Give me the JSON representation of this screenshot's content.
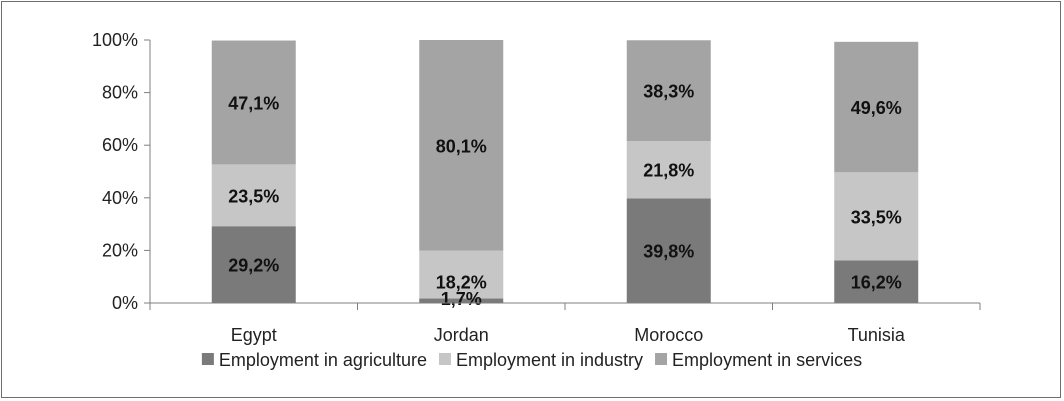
{
  "chart_data": {
    "type": "bar",
    "stacked": true,
    "categories": [
      "Egypt",
      "Jordan",
      "Morocco",
      "Tunisia"
    ],
    "series": [
      {
        "name": "Employment in agriculture",
        "values": [
          29.2,
          1.7,
          39.8,
          16.2
        ],
        "labels": [
          "29,2%",
          "1,7%",
          "39,8%",
          "16,2%"
        ],
        "color": "#7a7a7a"
      },
      {
        "name": "Employment in industry",
        "values": [
          23.5,
          18.2,
          21.8,
          33.5
        ],
        "labels": [
          "23,5%",
          "18,2%",
          "21,8%",
          "33,5%"
        ],
        "color": "#c6c6c6"
      },
      {
        "name": "Employment in services",
        "values": [
          47.1,
          80.1,
          38.3,
          49.6
        ],
        "labels": [
          "47,1%",
          "80,1%",
          "38,3%",
          "49,6%"
        ],
        "color": "#a4a4a4"
      }
    ],
    "y_ticks": [
      "0%",
      "20%",
      "40%",
      "60%",
      "80%",
      "100%"
    ],
    "ylim": [
      0,
      100
    ],
    "legend_position": "bottom",
    "grid": false
  }
}
